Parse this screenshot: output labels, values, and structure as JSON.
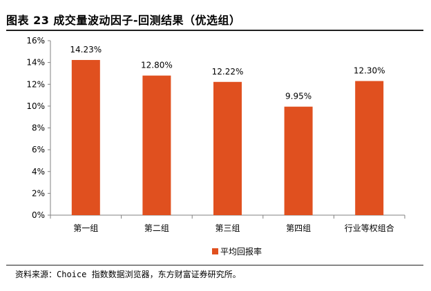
{
  "title": "图表 23 成交量波动因子-回测结果（优选组）",
  "source": "资料来源：Choice 指数数据浏览器，东方财富证券研究所。",
  "colors": {
    "bar": "#e0501f",
    "axis": "#808080",
    "rule": "#1f1f1f"
  },
  "chart_data": {
    "type": "bar",
    "categories": [
      "第一组",
      "第二组",
      "第三组",
      "第四组",
      "行业等权组合"
    ],
    "series": [
      {
        "name": "平均回报率",
        "values": [
          14.23,
          12.8,
          12.22,
          9.95,
          12.3
        ]
      }
    ],
    "data_labels": [
      "14.23%",
      "12.80%",
      "12.22%",
      "9.95%",
      "12.30%"
    ],
    "y_ticks": [
      "0%",
      "2%",
      "4%",
      "6%",
      "8%",
      "10%",
      "12%",
      "14%",
      "16%"
    ],
    "ylim": [
      0,
      16
    ],
    "legend_position": "bottom",
    "grid": false
  }
}
